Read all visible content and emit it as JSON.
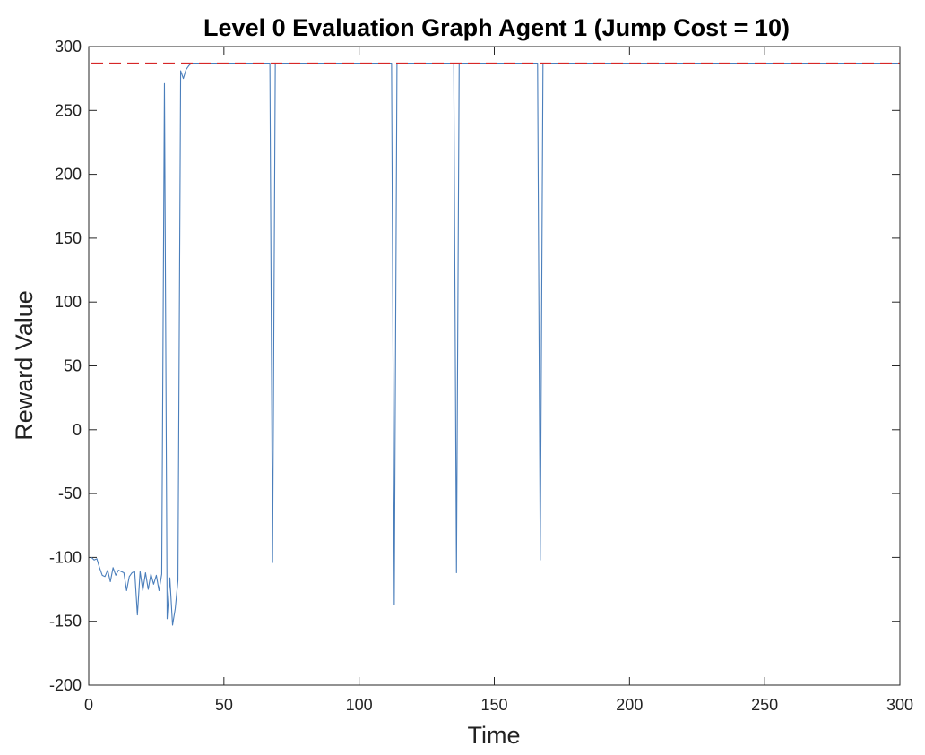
{
  "chart_data": {
    "type": "line",
    "title": "Level 0 Evaluation Graph Agent 1 (Jump Cost = 10)",
    "xlabel": "Time",
    "ylabel": "Reward Value",
    "xlim": [
      0,
      300
    ],
    "ylim": [
      -200,
      300
    ],
    "x_ticks": [
      0,
      50,
      100,
      150,
      200,
      250,
      300
    ],
    "y_ticks": [
      -200,
      -150,
      -100,
      -50,
      0,
      50,
      100,
      150,
      200,
      250,
      300
    ],
    "x_tick_labels": [
      "0",
      "50",
      "100",
      "150",
      "200",
      "250",
      "300"
    ],
    "y_tick_labels": [
      "-200",
      "-150",
      "-100",
      "-50",
      "0",
      "50",
      "100",
      "150",
      "200",
      "250",
      "300"
    ],
    "grid": false,
    "series": [
      {
        "style": "solid",
        "color": "#4a7ebb",
        "points": [
          [
            1,
            -100
          ],
          [
            2,
            -102
          ],
          [
            3,
            -101
          ],
          [
            4,
            -108
          ],
          [
            5,
            -114
          ],
          [
            6,
            -115
          ],
          [
            7,
            -110
          ],
          [
            8,
            -119
          ],
          [
            9,
            -108
          ],
          [
            10,
            -114
          ],
          [
            11,
            -110
          ],
          [
            12,
            -111
          ],
          [
            13,
            -112
          ],
          [
            14,
            -126
          ],
          [
            15,
            -115
          ],
          [
            16,
            -112
          ],
          [
            17,
            -111
          ],
          [
            18,
            -145
          ],
          [
            19,
            -111
          ],
          [
            20,
            -126
          ],
          [
            21,
            -112
          ],
          [
            22,
            -125
          ],
          [
            23,
            -113
          ],
          [
            24,
            -121
          ],
          [
            25,
            -114
          ],
          [
            26,
            -126
          ],
          [
            27,
            -113
          ],
          [
            28,
            271
          ],
          [
            29,
            -148
          ],
          [
            30,
            -116
          ],
          [
            31,
            -153
          ],
          [
            32,
            -140
          ],
          [
            33,
            -118
          ],
          [
            34,
            281
          ],
          [
            35,
            275
          ],
          [
            36,
            282
          ],
          [
            37,
            285
          ],
          [
            38,
            287
          ],
          [
            67,
            287
          ],
          [
            68,
            -104
          ],
          [
            69,
            287
          ],
          [
            112,
            287
          ],
          [
            113,
            -137
          ],
          [
            114,
            287
          ],
          [
            135,
            287
          ],
          [
            136,
            -112
          ],
          [
            137,
            287
          ],
          [
            166,
            287
          ],
          [
            167,
            -102
          ],
          [
            168,
            287
          ],
          [
            300,
            287
          ]
        ]
      },
      {
        "style": "dashed",
        "color": "#d62728",
        "points": [
          [
            1,
            287
          ],
          [
            300,
            287
          ]
        ]
      }
    ]
  }
}
